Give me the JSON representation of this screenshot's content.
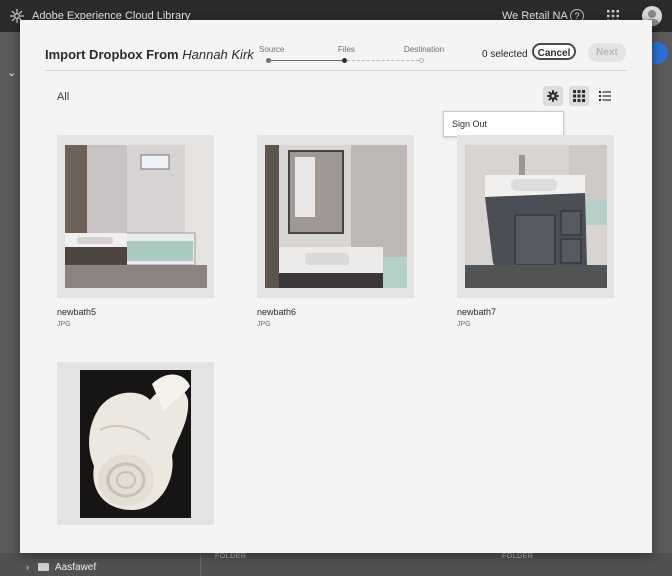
{
  "topbar": {
    "app_title": "Adobe Experience Cloud Library",
    "org": "We Retail NA",
    "help": "?"
  },
  "modal": {
    "title_prefix": "Import Dropbox From",
    "title_owner": "Hannah Kirk",
    "steps": [
      {
        "label": "Source",
        "state": "done"
      },
      {
        "label": "Files",
        "state": "current"
      },
      {
        "label": "Destination",
        "state": "pending"
      }
    ],
    "selected_count": "0 selected",
    "cancel_label": "Cancel",
    "next_label": "Next",
    "breadcrumb": "All",
    "menu": {
      "sign_out": "Sign Out"
    },
    "files": [
      {
        "name": "newbath5",
        "type": "JPG",
        "image": "bathroom-tub-vanity"
      },
      {
        "name": "newbath6",
        "type": "JPG",
        "image": "bathroom-mirror-sink"
      },
      {
        "name": "newbath7",
        "type": "JPG",
        "image": "bathroom-vanity-cabinet"
      },
      {
        "name": "",
        "type": "",
        "image": "rolled-white-towels"
      }
    ]
  },
  "background": {
    "folder_name": "Aasfawef",
    "column_label": "FOLDER"
  },
  "colors": {
    "topbar": "#2b2b2b",
    "modal_bg": "#f4f4f4",
    "thumb_bg": "#e3e3e3",
    "accent": "#2d6fd6"
  }
}
